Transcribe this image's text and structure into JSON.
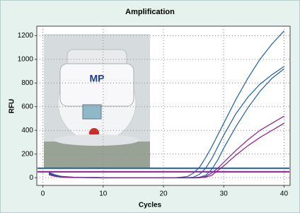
{
  "chart_data": {
    "type": "line",
    "title": "Amplification",
    "x_label": "Cycles",
    "y_label": "RFU",
    "x": [
      1,
      2,
      3,
      5,
      10,
      15,
      20,
      22,
      24,
      25,
      26,
      27,
      28,
      29,
      30,
      32,
      34,
      36,
      38,
      40
    ],
    "series": [
      {
        "color": "#1f5fa8",
        "values": [
          45,
          25,
          12,
          5,
          0,
          0,
          0,
          0,
          10,
          40,
          90,
          170,
          260,
          360,
          460,
          660,
          840,
          1000,
          1130,
          1240
        ]
      },
      {
        "color": "#1f5fa8",
        "values": [
          40,
          20,
          10,
          4,
          0,
          0,
          0,
          0,
          0,
          5,
          30,
          80,
          160,
          260,
          360,
          540,
          680,
          790,
          870,
          940
        ]
      },
      {
        "color": "#1f5fa8",
        "values": [
          35,
          18,
          8,
          3,
          0,
          0,
          0,
          0,
          0,
          0,
          5,
          20,
          70,
          150,
          250,
          430,
          590,
          730,
          840,
          920
        ]
      },
      {
        "color": "#8b1a8b",
        "values": [
          30,
          15,
          6,
          2,
          0,
          0,
          0,
          0,
          0,
          0,
          0,
          10,
          40,
          80,
          130,
          230,
          320,
          400,
          460,
          520
        ]
      },
      {
        "color": "#8b1a8b",
        "values": [
          25,
          12,
          5,
          2,
          0,
          0,
          0,
          0,
          0,
          0,
          0,
          5,
          20,
          60,
          100,
          190,
          270,
          340,
          400,
          460
        ]
      }
    ],
    "thresholds": [
      {
        "color": "#1f5fa8",
        "value": 80
      },
      {
        "color": "#8b1a8b",
        "value": 50
      }
    ],
    "xlim": [
      -1,
      41
    ],
    "ylim": [
      -65,
      1280
    ],
    "xticks": [
      0,
      10,
      20,
      30,
      40
    ],
    "yticks": [
      0,
      200,
      400,
      600,
      800,
      1000,
      1200
    ],
    "grid": true
  }
}
